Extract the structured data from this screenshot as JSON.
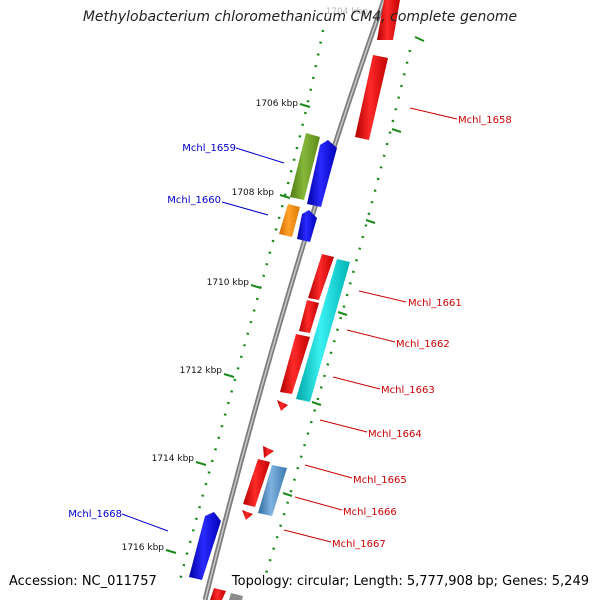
{
  "header": {
    "title": "Methylobacterium chloromethanicum CM4, complete genome"
  },
  "footer": {
    "accession": "Accession: NC_011757",
    "topology": "Topology: circular; Length: 5,777,908 bp; Genes: 5,249"
  },
  "kbp_labels": [
    "1704 kbp",
    "1706 kbp",
    "1708 kbp",
    "1710 kbp",
    "1712 kbp",
    "1714 kbp",
    "1716 kbp"
  ],
  "colors": {
    "backbone": "#8c8c8c",
    "forward_gene": "#ff0000",
    "reverse_gene": "#0000ee",
    "gc_ticks": "#1a8a1a",
    "reverse_label": "#0000cc",
    "forward_label": "#cc0000"
  },
  "gene_labels": [
    {
      "name": "Mchl_1658",
      "strand": "forward"
    },
    {
      "name": "Mchl_1659",
      "strand": "reverse"
    },
    {
      "name": "Mchl_1660",
      "strand": "reverse"
    },
    {
      "name": "Mchl_1661",
      "strand": "forward"
    },
    {
      "name": "Mchl_1662",
      "strand": "forward"
    },
    {
      "name": "Mchl_1663",
      "strand": "forward"
    },
    {
      "name": "Mchl_1664",
      "strand": "forward"
    },
    {
      "name": "Mchl_1665",
      "strand": "forward"
    },
    {
      "name": "Mchl_1666",
      "strand": "forward"
    },
    {
      "name": "Mchl_1667",
      "strand": "forward"
    },
    {
      "name": "Mchl_1668",
      "strand": "reverse"
    }
  ]
}
